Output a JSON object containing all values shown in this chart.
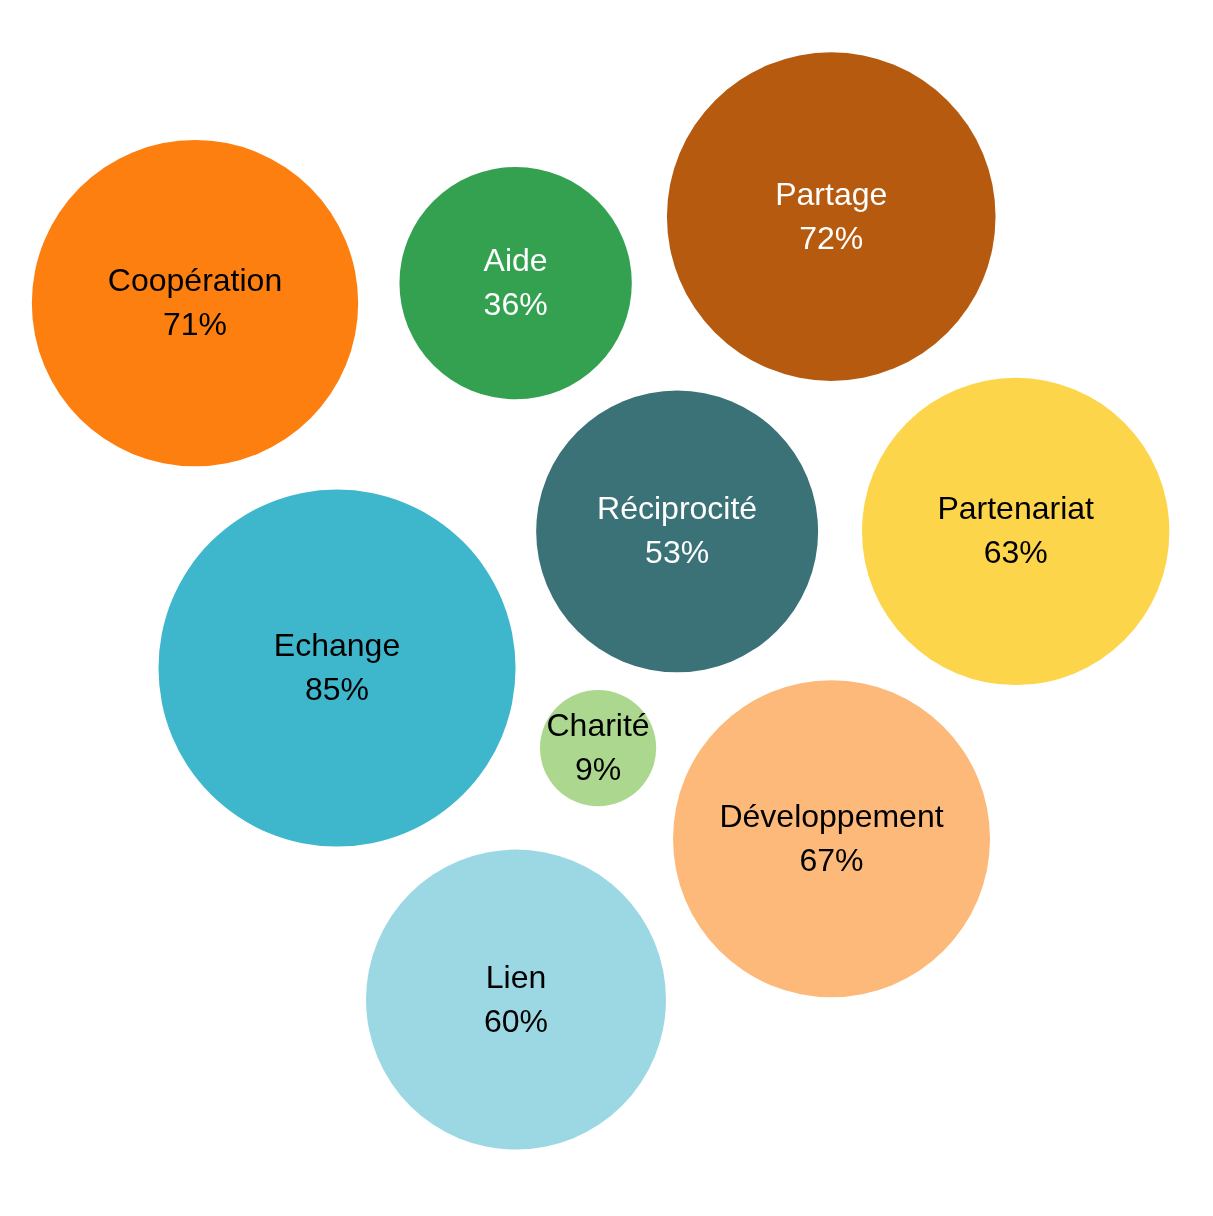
{
  "chart_data": {
    "type": "other",
    "categories": [
      "Réciprocité",
      "Partenariat",
      "Développement",
      "Partage",
      "Aide",
      "Charité",
      "Echange",
      "Lien",
      "Coopération"
    ],
    "values": [
      53,
      63,
      67,
      72,
      36,
      9,
      85,
      60,
      71
    ],
    "value_labels": [
      "53%",
      "63%",
      "67%",
      "72%",
      "36%",
      "9%",
      "85%",
      "60%",
      "71%"
    ],
    "colors": [
      "#3a7277",
      "#fdd54a",
      "#fdb97a",
      "#b65a10",
      "#34a150",
      "#acd78e",
      "#3eb6cc",
      "#9bd8e3",
      "#fd7f10"
    ]
  }
}
